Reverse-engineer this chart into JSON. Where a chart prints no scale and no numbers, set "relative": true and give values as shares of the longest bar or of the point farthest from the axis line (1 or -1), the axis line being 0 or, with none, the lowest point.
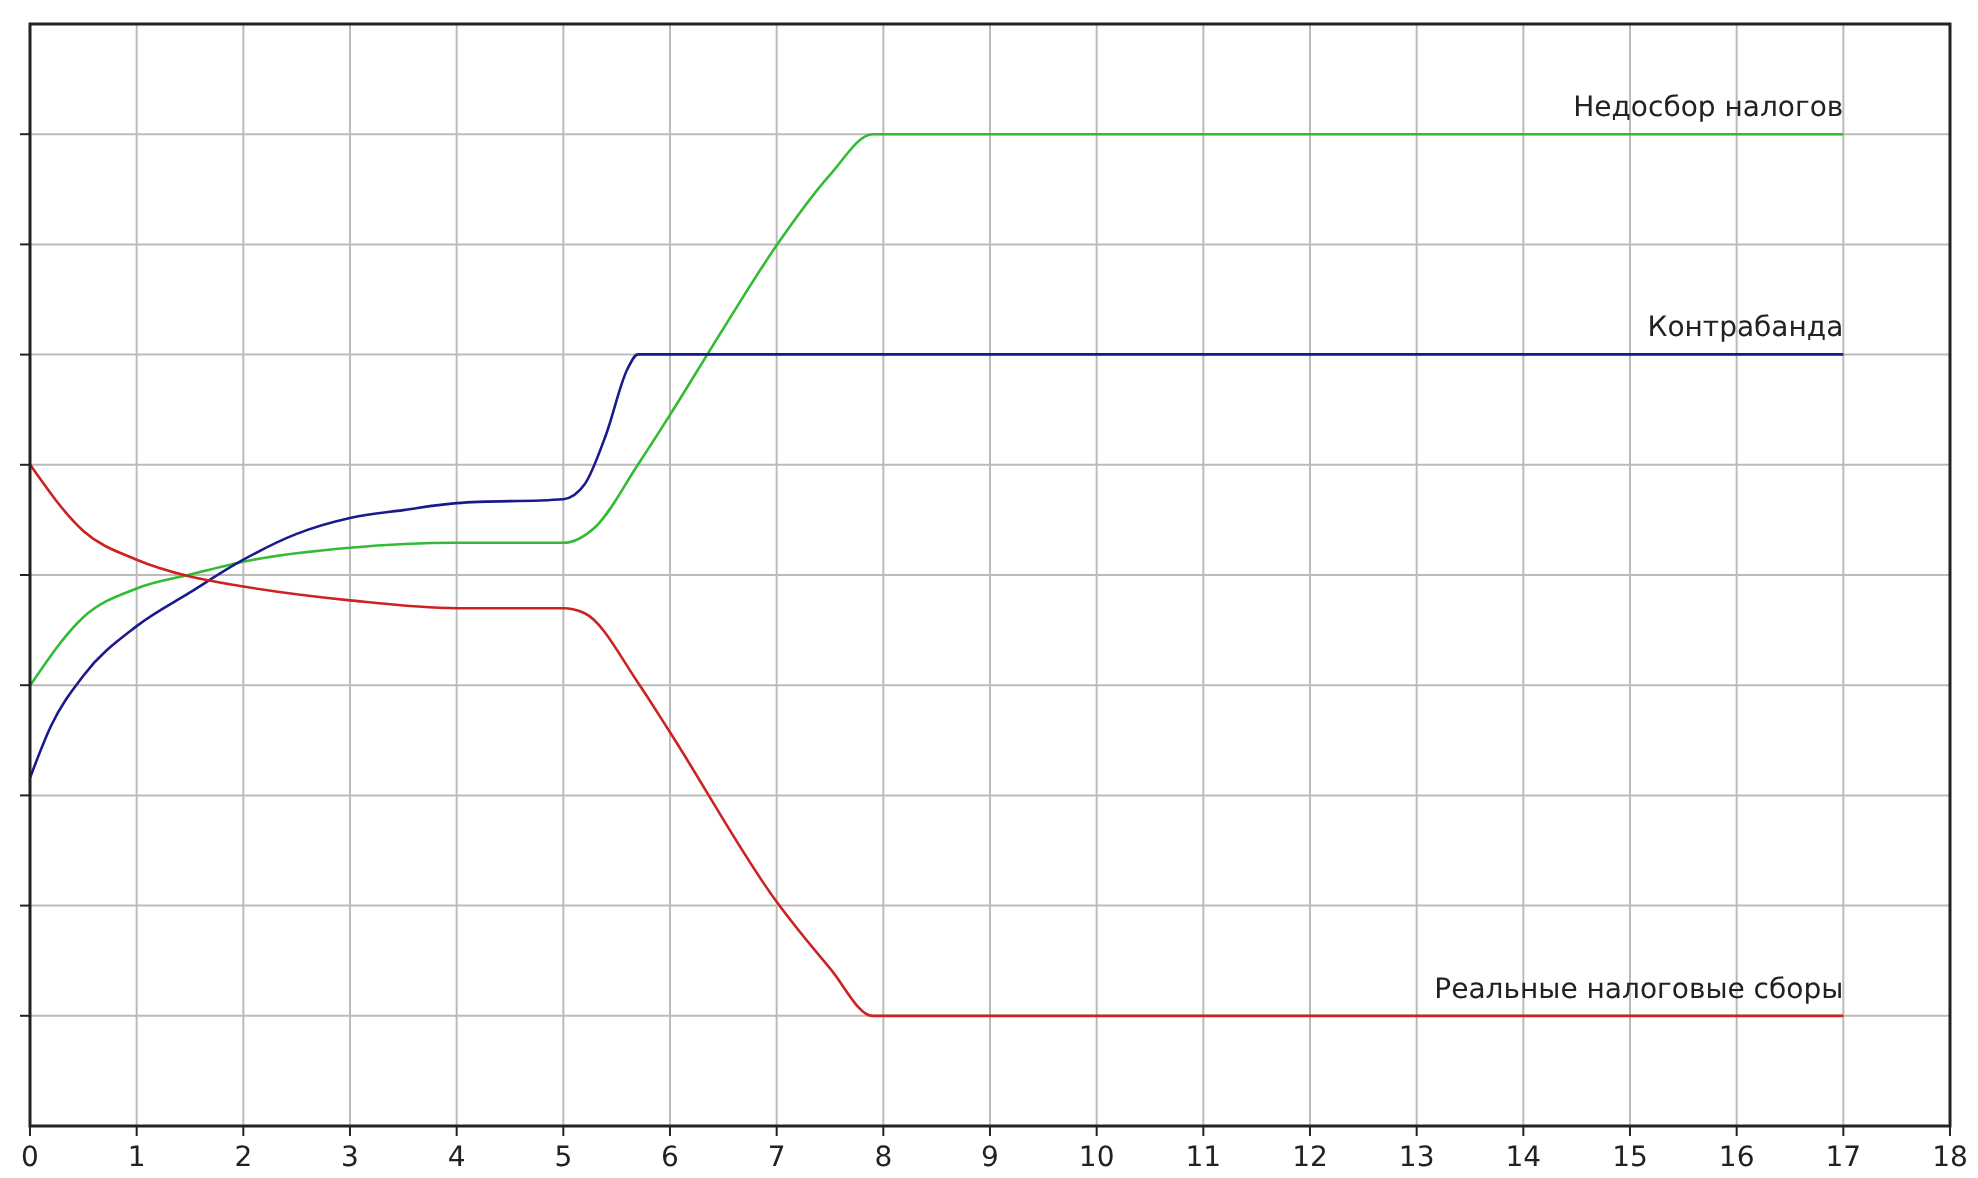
{
  "chart_data": {
    "type": "line",
    "relative": true,
    "grid": true,
    "line_style": "solid",
    "xlim": [
      0,
      18
    ],
    "xticks": [
      0,
      1,
      2,
      3,
      4,
      5,
      6,
      7,
      8,
      9,
      10,
      11,
      12,
      13,
      14,
      15,
      16,
      17,
      18
    ],
    "series": [
      {
        "name": "Недосбор налогов",
        "color": "#33bb33",
        "x": [
          0,
          0.5,
          1,
          1.5,
          2,
          3,
          4,
          5,
          5.3,
          5.7,
          6,
          6.5,
          7,
          7.5,
          7.9,
          17
        ],
        "values": [
          0.444,
          0.513,
          0.542,
          0.556,
          0.569,
          0.583,
          0.588,
          0.588,
          0.604,
          0.667,
          0.717,
          0.804,
          0.888,
          0.959,
          1,
          1
        ]
      },
      {
        "name": "Контрабанда",
        "color": "#1a1a8c",
        "x": [
          0,
          0.2,
          0.5,
          1,
          1.5,
          2,
          2.5,
          3,
          3.5,
          4,
          5,
          5.2,
          5.4,
          5.6,
          5.7,
          17
        ],
        "values": [
          0.351,
          0.404,
          0.454,
          0.504,
          0.538,
          0.571,
          0.597,
          0.613,
          0.621,
          0.628,
          0.632,
          0.647,
          0.697,
          0.763,
          0.778,
          0.778
        ]
      },
      {
        "name": "Реальные налоговые сборы",
        "color": "#cc2222",
        "x": [
          0,
          0.5,
          1,
          1.5,
          2,
          3,
          4,
          5,
          5.2,
          5.7,
          6,
          7,
          7.5,
          7.9,
          17
        ],
        "values": [
          0.667,
          0.6,
          0.571,
          0.554,
          0.544,
          0.53,
          0.522,
          0.522,
          0.517,
          0.447,
          0.397,
          0.226,
          0.159,
          0.111,
          0.111
        ]
      }
    ]
  }
}
